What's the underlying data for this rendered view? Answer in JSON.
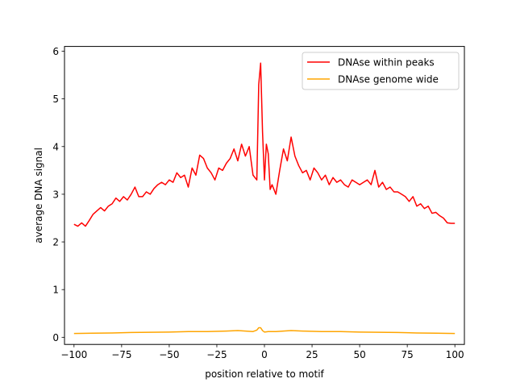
{
  "chart_data": {
    "type": "line",
    "title": "",
    "xlabel": "position relative to motif",
    "ylabel": "average DNA signal",
    "xlim": [
      -105,
      105
    ],
    "ylim": [
      -0.15,
      6.1
    ],
    "xticks": [
      -100,
      -75,
      -50,
      -25,
      0,
      25,
      50,
      75,
      100
    ],
    "yticks": [
      0,
      1,
      2,
      3,
      4,
      5,
      6
    ],
    "grid": false,
    "legend_position": "top-right",
    "series": [
      {
        "name": "DNAse within peaks",
        "color": "#ff0000",
        "points": [
          [
            -100,
            2.37
          ],
          [
            -98,
            2.33
          ],
          [
            -96,
            2.4
          ],
          [
            -94,
            2.33
          ],
          [
            -92,
            2.45
          ],
          [
            -90,
            2.58
          ],
          [
            -88,
            2.65
          ],
          [
            -86,
            2.72
          ],
          [
            -84,
            2.65
          ],
          [
            -82,
            2.75
          ],
          [
            -80,
            2.8
          ],
          [
            -78,
            2.92
          ],
          [
            -76,
            2.85
          ],
          [
            -74,
            2.95
          ],
          [
            -72,
            2.88
          ],
          [
            -70,
            3.0
          ],
          [
            -68,
            3.15
          ],
          [
            -66,
            2.95
          ],
          [
            -64,
            2.95
          ],
          [
            -62,
            3.05
          ],
          [
            -60,
            3.0
          ],
          [
            -58,
            3.12
          ],
          [
            -56,
            3.2
          ],
          [
            -54,
            3.25
          ],
          [
            -52,
            3.2
          ],
          [
            -50,
            3.3
          ],
          [
            -48,
            3.25
          ],
          [
            -46,
            3.45
          ],
          [
            -44,
            3.35
          ],
          [
            -42,
            3.4
          ],
          [
            -40,
            3.15
          ],
          [
            -38,
            3.55
          ],
          [
            -36,
            3.4
          ],
          [
            -34,
            3.82
          ],
          [
            -32,
            3.75
          ],
          [
            -30,
            3.55
          ],
          [
            -28,
            3.45
          ],
          [
            -26,
            3.3
          ],
          [
            -24,
            3.55
          ],
          [
            -22,
            3.5
          ],
          [
            -20,
            3.65
          ],
          [
            -18,
            3.75
          ],
          [
            -16,
            3.95
          ],
          [
            -14,
            3.7
          ],
          [
            -12,
            4.05
          ],
          [
            -10,
            3.8
          ],
          [
            -8,
            4.0
          ],
          [
            -6,
            3.4
          ],
          [
            -4,
            3.3
          ],
          [
            -3,
            5.3
          ],
          [
            -2,
            5.75
          ],
          [
            -1,
            4.3
          ],
          [
            0,
            3.3
          ],
          [
            1,
            4.05
          ],
          [
            2,
            3.85
          ],
          [
            3,
            3.1
          ],
          [
            4,
            3.2
          ],
          [
            6,
            3.0
          ],
          [
            8,
            3.5
          ],
          [
            10,
            3.95
          ],
          [
            12,
            3.7
          ],
          [
            14,
            4.2
          ],
          [
            16,
            3.8
          ],
          [
            18,
            3.6
          ],
          [
            20,
            3.45
          ],
          [
            22,
            3.5
          ],
          [
            24,
            3.3
          ],
          [
            26,
            3.55
          ],
          [
            28,
            3.45
          ],
          [
            30,
            3.3
          ],
          [
            32,
            3.4
          ],
          [
            34,
            3.2
          ],
          [
            36,
            3.35
          ],
          [
            38,
            3.25
          ],
          [
            40,
            3.3
          ],
          [
            42,
            3.2
          ],
          [
            44,
            3.15
          ],
          [
            46,
            3.3
          ],
          [
            48,
            3.25
          ],
          [
            50,
            3.2
          ],
          [
            52,
            3.25
          ],
          [
            54,
            3.3
          ],
          [
            56,
            3.2
          ],
          [
            58,
            3.5
          ],
          [
            60,
            3.15
          ],
          [
            62,
            3.25
          ],
          [
            64,
            3.1
          ],
          [
            66,
            3.15
          ],
          [
            68,
            3.05
          ],
          [
            70,
            3.05
          ],
          [
            72,
            3.0
          ],
          [
            74,
            2.95
          ],
          [
            76,
            2.85
          ],
          [
            78,
            2.95
          ],
          [
            80,
            2.75
          ],
          [
            82,
            2.8
          ],
          [
            84,
            2.7
          ],
          [
            86,
            2.75
          ],
          [
            88,
            2.6
          ],
          [
            90,
            2.62
          ],
          [
            92,
            2.55
          ],
          [
            94,
            2.5
          ],
          [
            96,
            2.4
          ],
          [
            98,
            2.39
          ],
          [
            100,
            2.39
          ]
        ]
      },
      {
        "name": "DNAse genome wide",
        "color": "#ffa500",
        "points": [
          [
            -100,
            0.08
          ],
          [
            -90,
            0.085
          ],
          [
            -80,
            0.09
          ],
          [
            -70,
            0.1
          ],
          [
            -60,
            0.105
          ],
          [
            -50,
            0.11
          ],
          [
            -40,
            0.12
          ],
          [
            -30,
            0.12
          ],
          [
            -20,
            0.13
          ],
          [
            -14,
            0.14
          ],
          [
            -10,
            0.13
          ],
          [
            -6,
            0.12
          ],
          [
            -4,
            0.15
          ],
          [
            -3,
            0.2
          ],
          [
            -2,
            0.2
          ],
          [
            -1,
            0.14
          ],
          [
            0,
            0.11
          ],
          [
            2,
            0.12
          ],
          [
            6,
            0.12
          ],
          [
            10,
            0.13
          ],
          [
            14,
            0.14
          ],
          [
            20,
            0.13
          ],
          [
            30,
            0.12
          ],
          [
            40,
            0.12
          ],
          [
            50,
            0.11
          ],
          [
            60,
            0.105
          ],
          [
            70,
            0.1
          ],
          [
            80,
            0.09
          ],
          [
            90,
            0.085
          ],
          [
            100,
            0.08
          ]
        ]
      }
    ]
  }
}
